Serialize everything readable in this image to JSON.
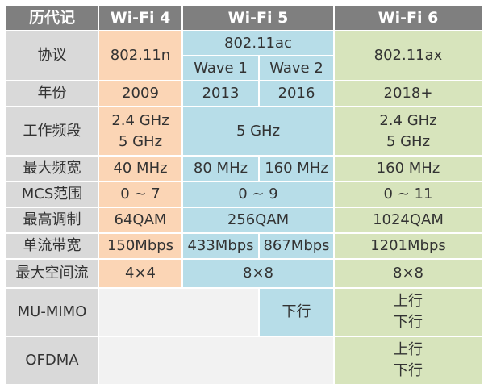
{
  "header": [
    "历代记",
    "Wi-Fi 4",
    "Wi-Fi 5",
    "Wi-Fi 6"
  ],
  "protocol": {
    "label": "协议",
    "wifi4": "802.11n",
    "wifi5": "802.11ac",
    "wave1": "Wave 1",
    "wave2": "Wave 2",
    "wifi6": "802.11ax"
  },
  "year": {
    "label": "年份",
    "wifi4": "2009",
    "wave1": "2013",
    "wave2": "2016",
    "wifi6": "2018+"
  },
  "band": {
    "label": "工作频段",
    "wifi4": [
      "2.4 GHz",
      "5 GHz"
    ],
    "wifi5": "5 GHz",
    "wifi6": [
      "2.4 GHz",
      "5 GHz"
    ]
  },
  "bandwidth": {
    "label": "最大频宽",
    "wifi4": "40 MHz",
    "wave1": "80 MHz",
    "wave2": "160 MHz",
    "wifi6": "160 MHz"
  },
  "mcs": {
    "label": "MCS范围",
    "wifi4": "0 ~ 7",
    "wifi5": "0 ~ 9",
    "wifi6": "0 ~ 11"
  },
  "modulation": {
    "label": "最高调制",
    "wifi4": "64QAM",
    "wifi5": "256QAM",
    "wifi6": "1024QAM"
  },
  "stream_rate": {
    "label": "单流带宽",
    "wifi4": "150Mbps",
    "wave1": "433Mbps",
    "wave2": "867Mbps",
    "wifi6": "1201Mbps"
  },
  "spatial": {
    "label": "最大空间流",
    "wifi4": "4×4",
    "wifi5": "8×8",
    "wifi6": "8×8"
  },
  "mumimo": {
    "label": "MU-MIMO",
    "wave2": "下行",
    "wifi6": [
      "上行",
      "下行"
    ]
  },
  "ofdma": {
    "label": "OFDMA",
    "wifi6": [
      "上行",
      "下行"
    ]
  },
  "colors": {
    "header": "#7f7f7f",
    "label": "#d9d9d9",
    "wifi4": "#fbd5b5",
    "wifi5": "#b7dde8",
    "wifi6": "#d7e4bc",
    "empty": "#f2f2f2"
  }
}
